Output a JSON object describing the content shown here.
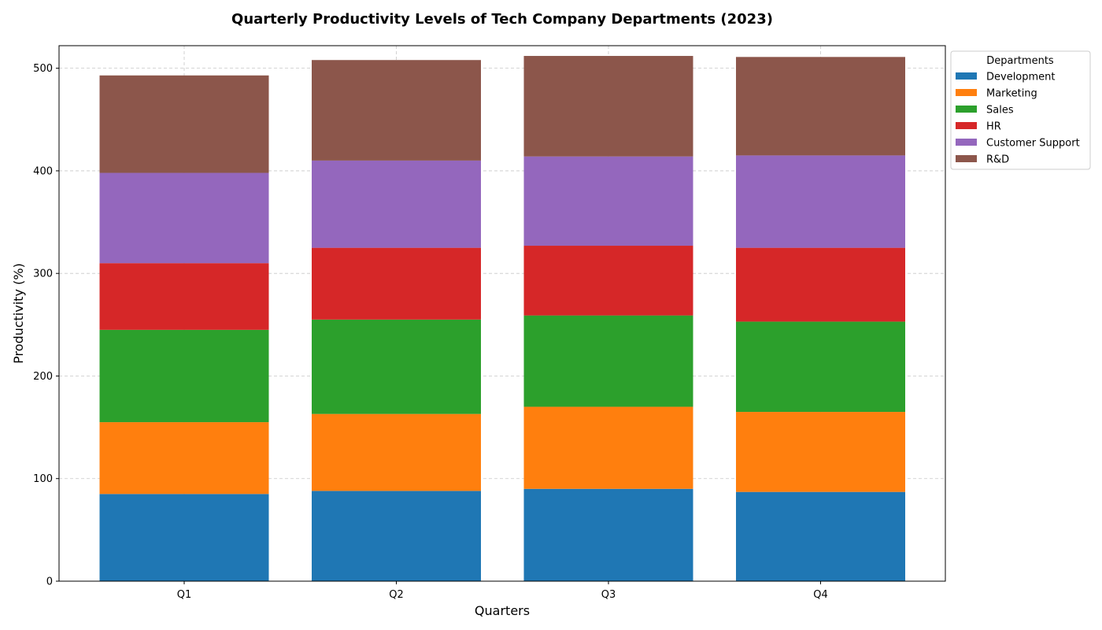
{
  "chart_data": {
    "type": "bar",
    "stacked": true,
    "title": "Quarterly Productivity Levels of Tech Company Departments (2023)",
    "xlabel": "Quarters",
    "ylabel": "Productivity (%)",
    "categories": [
      "Q1",
      "Q2",
      "Q3",
      "Q4"
    ],
    "ylim": [
      0,
      522
    ],
    "yticks": [
      0,
      100,
      200,
      300,
      400,
      500
    ],
    "grid": true,
    "legend": {
      "title": "Departments",
      "placement": "outside-top-right"
    },
    "series": [
      {
        "name": "Development",
        "color": "#1f77b4",
        "values": [
          85,
          88,
          90,
          87
        ]
      },
      {
        "name": "Marketing",
        "color": "#ff7f0e",
        "values": [
          70,
          75,
          80,
          78
        ]
      },
      {
        "name": "Sales",
        "color": "#2ca02c",
        "values": [
          90,
          92,
          89,
          88
        ]
      },
      {
        "name": "HR",
        "color": "#d62728",
        "values": [
          65,
          70,
          68,
          72
        ]
      },
      {
        "name": "Customer Support",
        "color": "#9467bd",
        "values": [
          88,
          85,
          87,
          90
        ]
      },
      {
        "name": "R&D",
        "color": "#8c564b",
        "values": [
          95,
          98,
          98,
          96
        ]
      }
    ]
  }
}
